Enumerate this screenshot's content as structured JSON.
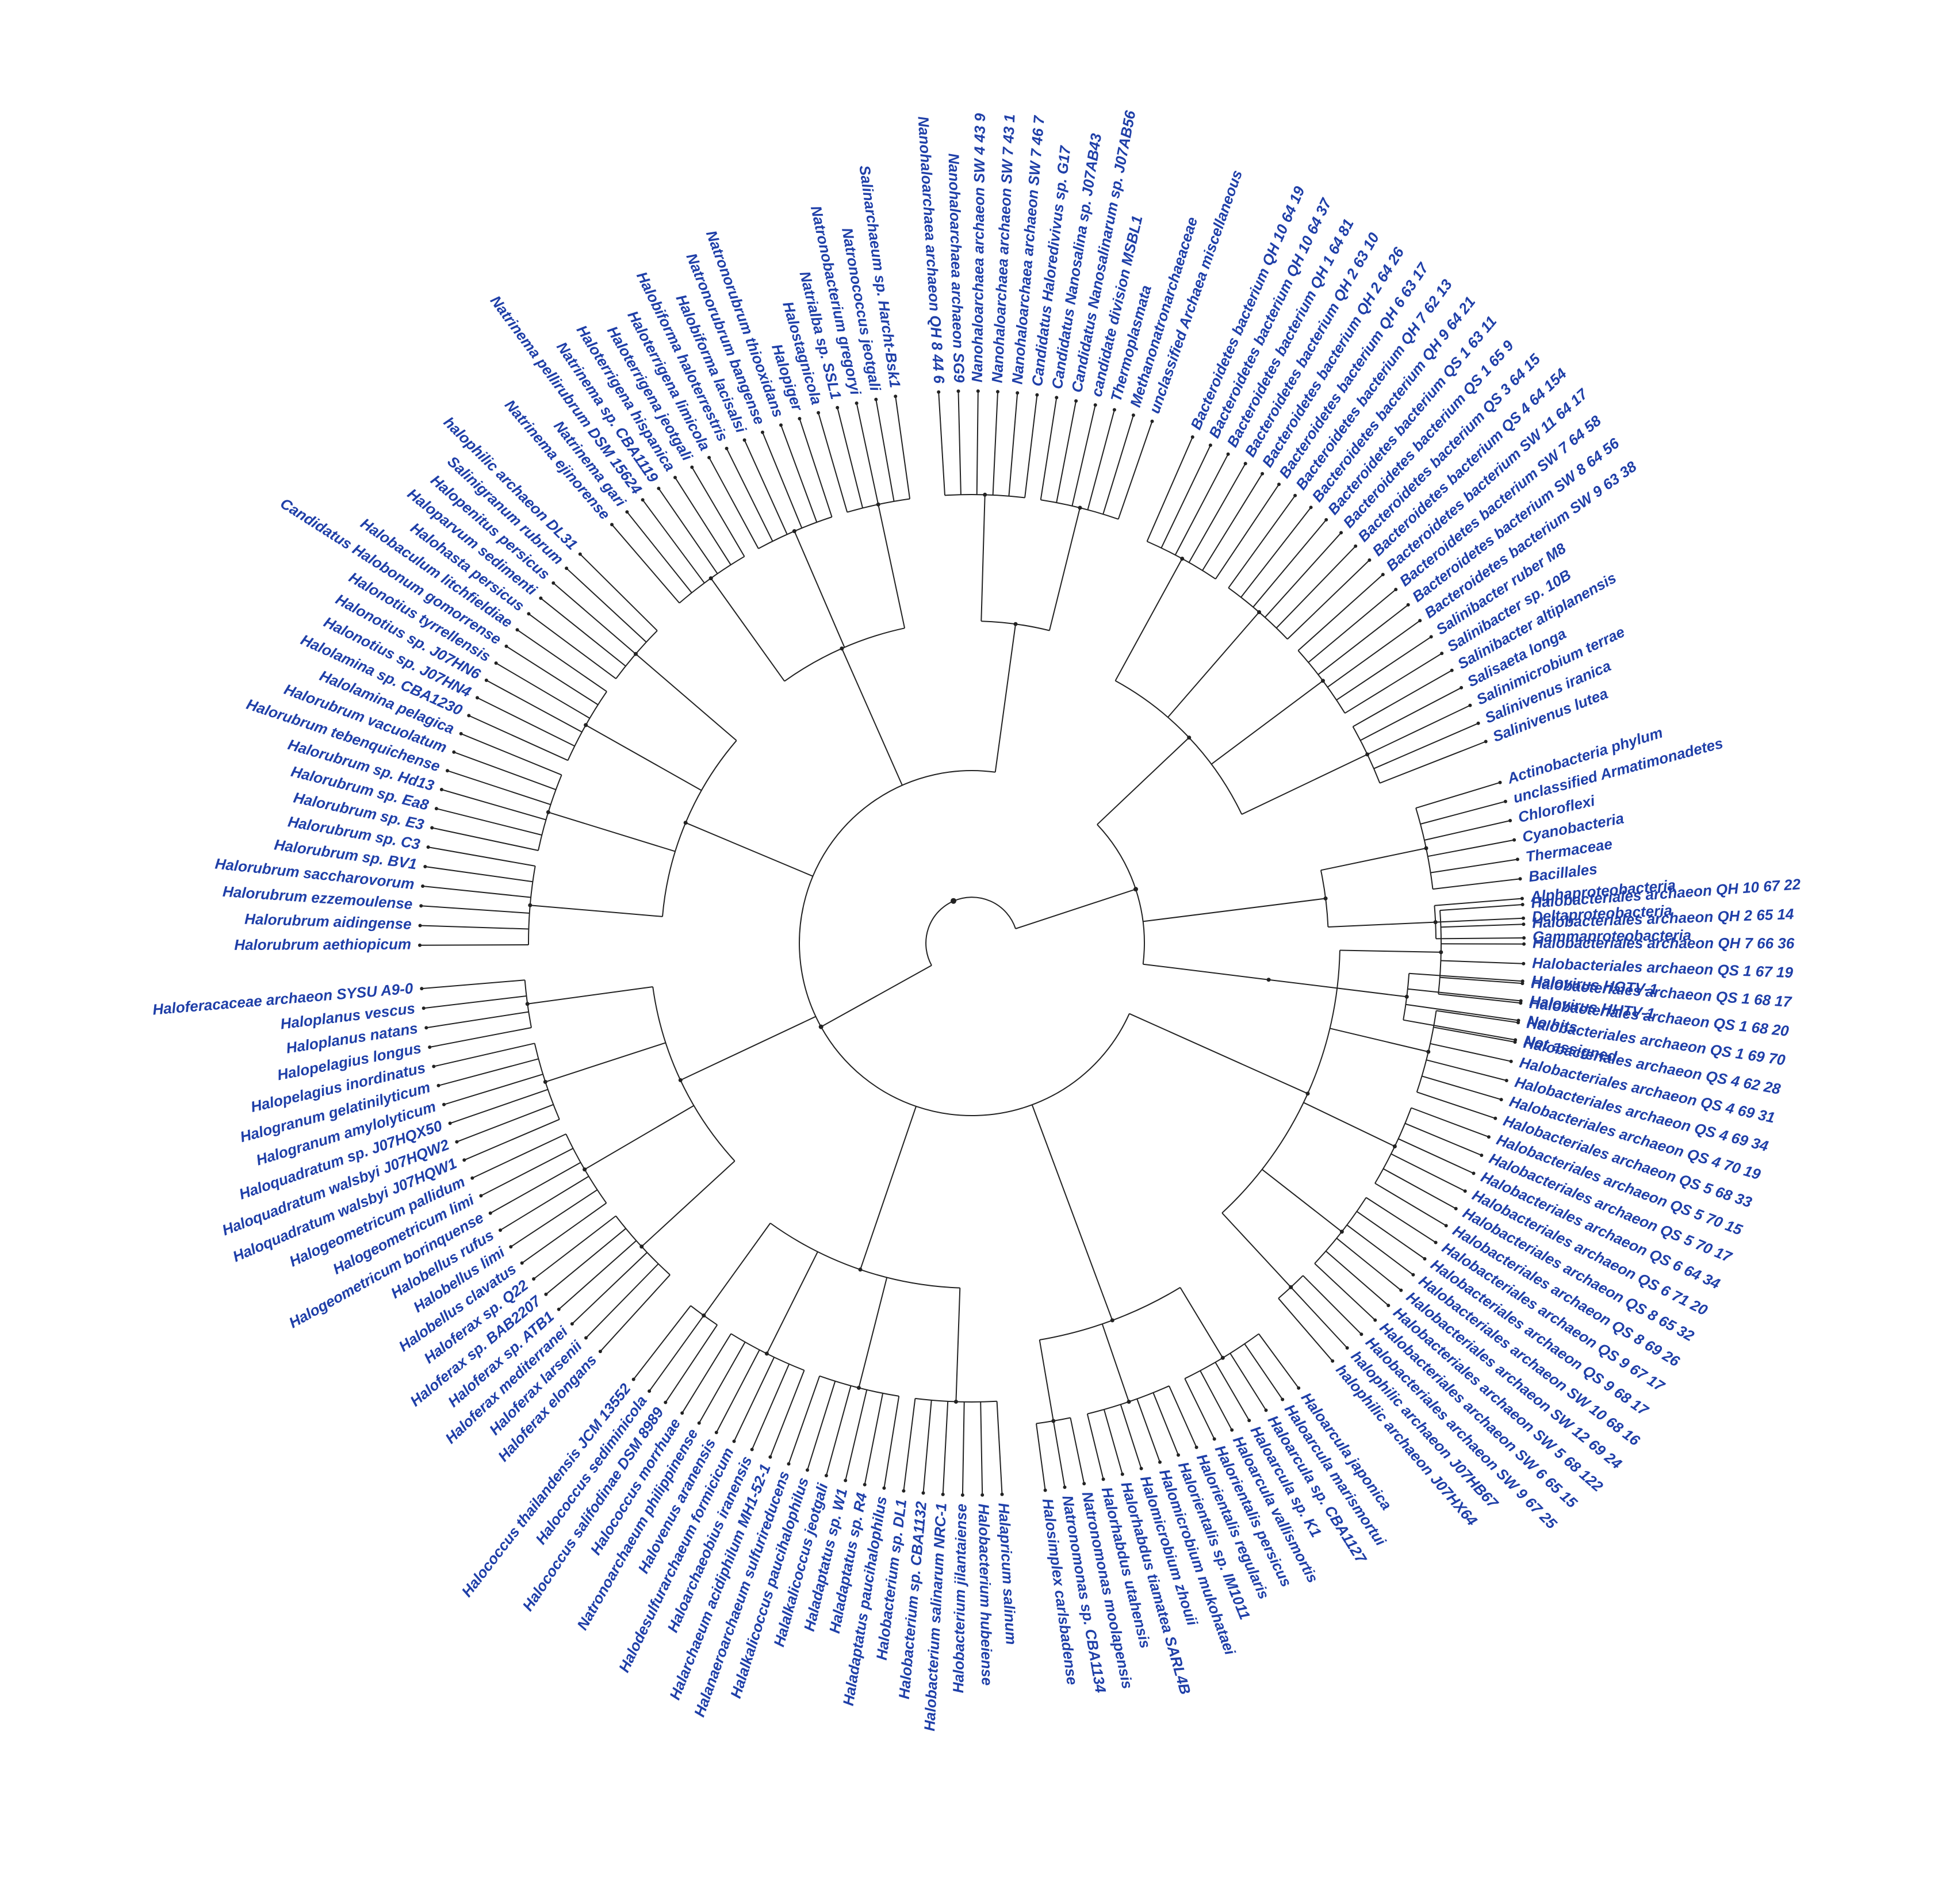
{
  "figure": {
    "label_color": "#1f3fa8",
    "line_color": "#222222",
    "node_color": "#222222",
    "background": "#ffffff"
  },
  "groups": [
    {
      "name": "halobacteriales-archaeon",
      "labels": [
        "Halobacteriales archaeon QH 10 67 22",
        "Halobacteriales archaeon QH 2 65 14",
        "Halobacteriales archaeon QH 7 66 36",
        "Halobacteriales archaeon QS 1 67 19",
        "Halobacteriales archaeon QS 1 68 17",
        "Halobacteriales archaeon QS 1 68 20",
        "Halobacteriales archaeon QS 1 69 70",
        "Halobacteriales archaeon QS 4 62 28",
        "Halobacteriales archaeon QS 4 69 31",
        "Halobacteriales archaeon QS 4 69 34",
        "Halobacteriales archaeon QS 4 70 19",
        "Halobacteriales archaeon QS 5 68 33",
        "Halobacteriales archaeon QS 5 70 15",
        "Halobacteriales archaeon QS 5 70 17",
        "Halobacteriales archaeon QS 6 64 34",
        "Halobacteriales archaeon QS 6 71 20",
        "Halobacteriales archaeon QS 8 65 32",
        "Halobacteriales archaeon QS 8 69 26",
        "Halobacteriales archaeon QS 9 67 17",
        "Halobacteriales archaeon QS 9 68 17",
        "Halobacteriales archaeon SW 10 68 16",
        "Halobacteriales archaeon SW 12 69 24",
        "Halobacteriales archaeon SW 5 68 122",
        "Halobacteriales archaeon SW 6 65 15",
        "Halobacteriales archaeon SW 9 67 25",
        "halophilic archaeon J07HB67",
        "halophilic archaeon J07HX64"
      ]
    },
    {
      "name": "haloarculaceae",
      "labels": [
        "Haloarcula japonica",
        "Haloarcula marismortui",
        "Haloarcula sp. CBA1127",
        "Haloarcula sp. K1",
        "Haloarcula vallismortis",
        "Halorientalis persicus",
        "Halorientalis regularis",
        "Halorientalis sp. IM1011",
        "Halomicrobium mukohataei",
        "Halomicrobium zhouii",
        "Halorhabdus tiamatea SARL4B",
        "Halorhabdus utahensis",
        "Natronomonas moolapensis",
        "Natronomonas sp. CBA1134",
        "Halosimplex carlsbadense"
      ]
    },
    {
      "name": "halobacteriaceae",
      "labels": [
        "Halapricum salinum",
        "Halobacterium hubeiense",
        "Halobacterium jilantaiense",
        "Halobacterium salinarum NRC-1",
        "Halobacterium sp. CBA1132",
        "Halobacterium sp. DL1",
        "Haladaptatus paucihalophilus",
        "Haladaptatus sp. R4",
        "Haladaptatus sp. W1",
        "Halalkalicoccus jeotgali",
        "Halalkalicoccus paucihalophilus",
        "Halanaeroarchaeum sulfurireducens",
        "Halarchaeum acidiphilum MH1-52-1",
        "Haloarchaeobius iranensis",
        "Halodesulfurarchaeum formicicum",
        "Halovenus aranensis",
        "Natronoarchaeum philippinense",
        "Halococcus morrhuae",
        "Halococcus salifodinae DSM 8989",
        "Halococcus sediminicola",
        "Halococcus thailandensis JCM 13552"
      ]
    },
    {
      "name": "haloferacaceae",
      "labels": [
        "Haloferax elongans",
        "Haloferax larsenii",
        "Haloferax mediterranei",
        "Haloferax sp. ATB1",
        "Haloferax sp. BAB2207",
        "Haloferax sp. Q22",
        "Halobellus clavatus",
        "Halobellus limi",
        "Halobellus rufus",
        "Halogeometricum borinquense",
        "Halogeometricum limi",
        "Halogeometricum pallidum",
        "Haloquadratum walsbyi J07HQW1",
        "Haloquadratum walsbyi J07HQW2",
        "Haloquadratum sp. J07HQX50",
        "Halogranum amylolyticum",
        "Halogranum gelatinilyticum",
        "Halopelagius inordinatus",
        "Halopelagius longus",
        "Haloplanus natans",
        "Haloplanus vescus",
        "Haloferacaceae archaeon SYSU A9-0"
      ]
    },
    {
      "name": "halorubraceae",
      "labels": [
        "Halorubrum aethiopicum",
        "Halorubrum aidingense",
        "Halorubrum ezzemoulense",
        "Halorubrum saccharovorum",
        "Halorubrum sp. BV1",
        "Halorubrum sp. C3",
        "Halorubrum sp. E3",
        "Halorubrum sp. Ea8",
        "Halorubrum sp. Hd13",
        "Halorubrum tebenquichense",
        "Halorubrum vacuolatum",
        "Halolamina pelagica",
        "Halolamina sp. CBA1230",
        "Halonotius sp. J07HN4",
        "Halonotius sp. J07HN6",
        "Halonotius tyrrellensis",
        "Candidatus Halobonum gomorrense",
        "Halobaculum litchfieldiae",
        "Halohasta persicus",
        "Haloparvum sedimenti",
        "Halopenitus persicus",
        "Salinigranum rubrum",
        "halophilic archaeon DL31"
      ]
    },
    {
      "name": "natrialbaceae",
      "labels": [
        "Natrinema ejinorense",
        "Natrinema gari",
        "Natrinema pellirubrum DSM 15624",
        "Natrinema sp. CBA1119",
        "Haloterrigena hispanica",
        "Haloterrigena jeotgali",
        "Haloterrigena limicola",
        "Halobiforma haloterrestris",
        "Halobiforma lacisalsi",
        "Natronorubrum bangense",
        "Natronorubrum thiooxidans",
        "Halopiger",
        "Halostagnicola",
        "Natrialba sp. SSL1",
        "Natronobacterium gregoryi",
        "Natronococcus jeotgali",
        "Salinarchaeum sp. Harcht-Bsk1"
      ]
    },
    {
      "name": "nanohaloarchaea",
      "labels": [
        "Nanohaloarchaea archaeon QH 8 44 6",
        "Nanohaloarchaea archaeon SG9",
        "Nanohaloarchaea archaeon SW 4 43 9",
        "Nanohaloarchaea archaeon SW 7 43 1",
        "Nanohaloarchaea archaeon SW 7 46 7",
        "Candidatus Haloredivivus sp. G17",
        "Candidatus Nanosalina sp. J07AB43",
        "Candidatus Nanosalinarum sp. J07AB56",
        "candidate division MSBL1",
        "Thermoplasmata",
        "Methanonatronarchaeaceae",
        "unclassified Archaea miscellaneous"
      ]
    },
    {
      "name": "bacteroidetes",
      "labels": [
        "Bacteroidetes bacterium QH 10 64 19",
        "Bacteroidetes bacterium QH 10 64 37",
        "Bacteroidetes bacterium QH 1 64 81",
        "Bacteroidetes bacterium QH 2 63 10",
        "Bacteroidetes bacterium QH 2 64 26",
        "Bacteroidetes bacterium QH 6 63 17",
        "Bacteroidetes bacterium QH 7 62 13",
        "Bacteroidetes bacterium QH 9 64 21",
        "Bacteroidetes bacterium QS 1 63 11",
        "Bacteroidetes bacterium QS 1 65 9",
        "Bacteroidetes bacterium QS 3 64 15",
        "Bacteroidetes bacterium QS 4 64 154",
        "Bacteroidetes bacterium SW 11 64 17",
        "Bacteroidetes bacterium SW 7 64 58",
        "Bacteroidetes bacterium SW 8 64 56",
        "Bacteroidetes bacterium SW 9 63 38",
        "Salinibacter ruber M8",
        "Salinibacter sp. 10B",
        "Salinibacter altiplanensis",
        "Salisaeta longa",
        "Salinimicrobium terrae",
        "Salinivenus iranica",
        "Salinivenus lutea"
      ]
    },
    {
      "name": "other-bacteria",
      "labels": [
        "Actinobacteria phylum",
        "unclassified Armatimonadetes",
        "Chloroflexi",
        "Cyanobacteria",
        "Thermaceae",
        "Bacillales",
        "Alphaproteobacteria",
        "Deltaproteobacteria",
        "Gammaproteobacteria"
      ]
    },
    {
      "name": "viruses-unassigned",
      "labels": [
        "Halovirus HGTV-1",
        "Halovirus HHTV-1",
        "No hits",
        "Not assigned"
      ]
    }
  ]
}
